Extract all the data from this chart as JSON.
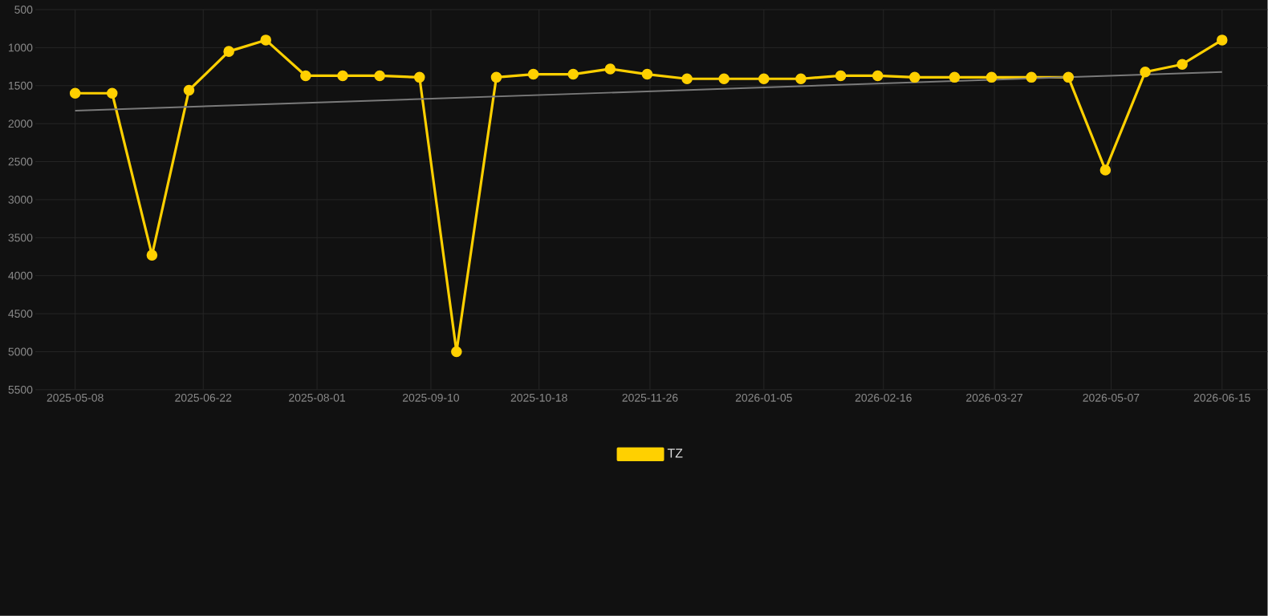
{
  "chart_data": {
    "type": "line",
    "xlim": [
      "2025-04-24",
      "2026-07-01"
    ],
    "ylim": [
      5500,
      500
    ],
    "xticks": [
      "2025-05-08",
      "2025-06-22",
      "2025-08-01",
      "2025-09-10",
      "2025-10-18",
      "2025-11-26",
      "2026-01-05",
      "2026-02-16",
      "2026-03-27",
      "2026-05-07",
      "2026-06-15"
    ],
    "yticks": [
      500,
      1000,
      1500,
      2000,
      2500,
      3000,
      3500,
      4000,
      4500,
      5000,
      5500
    ],
    "grid": true,
    "legend": "bottom",
    "series": [
      {
        "name": "TZ",
        "color": "#ffd000",
        "marker": "circle",
        "line_style": "solid",
        "x": [
          "2025-05-08",
          "2025-05-21",
          "2025-06-04",
          "2025-06-17",
          "2025-07-01",
          "2025-07-14",
          "2025-07-28",
          "2025-08-10",
          "2025-08-23",
          "2025-09-06",
          "2025-09-19",
          "2025-10-03",
          "2025-10-16",
          "2025-10-30",
          "2025-11-12",
          "2025-11-25",
          "2025-12-09",
          "2025-12-22",
          "2026-01-05",
          "2026-01-18",
          "2026-02-01",
          "2026-02-14",
          "2026-02-27",
          "2026-03-13",
          "2026-03-26",
          "2026-04-09",
          "2026-04-22",
          "2026-05-05",
          "2026-05-19",
          "2026-06-01",
          "2026-06-15"
        ],
        "values": [
          1600,
          1600,
          3730,
          1560,
          1050,
          900,
          1370,
          1370,
          1370,
          1390,
          5000,
          1390,
          1350,
          1350,
          1280,
          1350,
          1410,
          1410,
          1410,
          1410,
          1370,
          1370,
          1390,
          1390,
          1390,
          1390,
          1390,
          2610,
          1320,
          1220,
          900
        ]
      },
      {
        "color": "#7a7a7a",
        "marker": "none",
        "line_style": "solid",
        "x": [
          "2025-05-08",
          "2026-06-15"
        ],
        "values": [
          1830,
          1320
        ]
      }
    ]
  }
}
